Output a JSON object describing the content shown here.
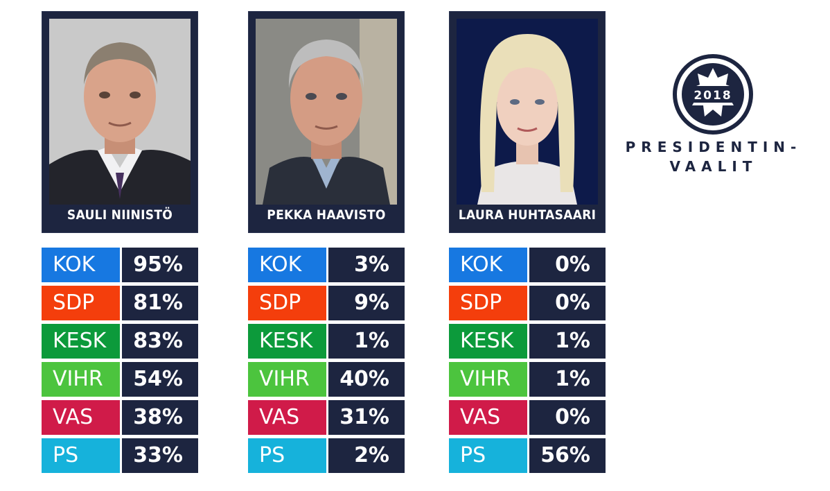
{
  "logo": {
    "year": "2018",
    "line1": "PRESIDENTIN-",
    "line2": "VAALIT",
    "color": "#1d2540"
  },
  "colors": {
    "panel": "#1d2540",
    "KOK": "#1778e1",
    "SDP": "#f43e0c",
    "KESK": "#0c9a3b",
    "VIHR": "#4cc43e",
    "VAS": "#d01b49",
    "PS": "#16b2db"
  },
  "chart_data": {
    "type": "table",
    "parties": [
      "KOK",
      "SDP",
      "KESK",
      "VIHR",
      "VAS",
      "PS"
    ],
    "unit": "%",
    "candidates": [
      {
        "name": "SAULI NIINISTÖ",
        "values": [
          95,
          81,
          83,
          54,
          38,
          33
        ],
        "labels": [
          "95%",
          "81%",
          "83%",
          "54%",
          "38%",
          "33%"
        ]
      },
      {
        "name": "PEKKA HAAVISTO",
        "values": [
          3,
          9,
          1,
          40,
          31,
          2
        ],
        "labels": [
          "3%",
          "9%",
          "1%",
          "40%",
          "31%",
          "2%"
        ]
      },
      {
        "name": "LAURA HUHTASAARI",
        "values": [
          0,
          0,
          1,
          1,
          0,
          56
        ],
        "labels": [
          "0%",
          "0%",
          "1%",
          "1%",
          "0%",
          "56%"
        ]
      }
    ]
  }
}
